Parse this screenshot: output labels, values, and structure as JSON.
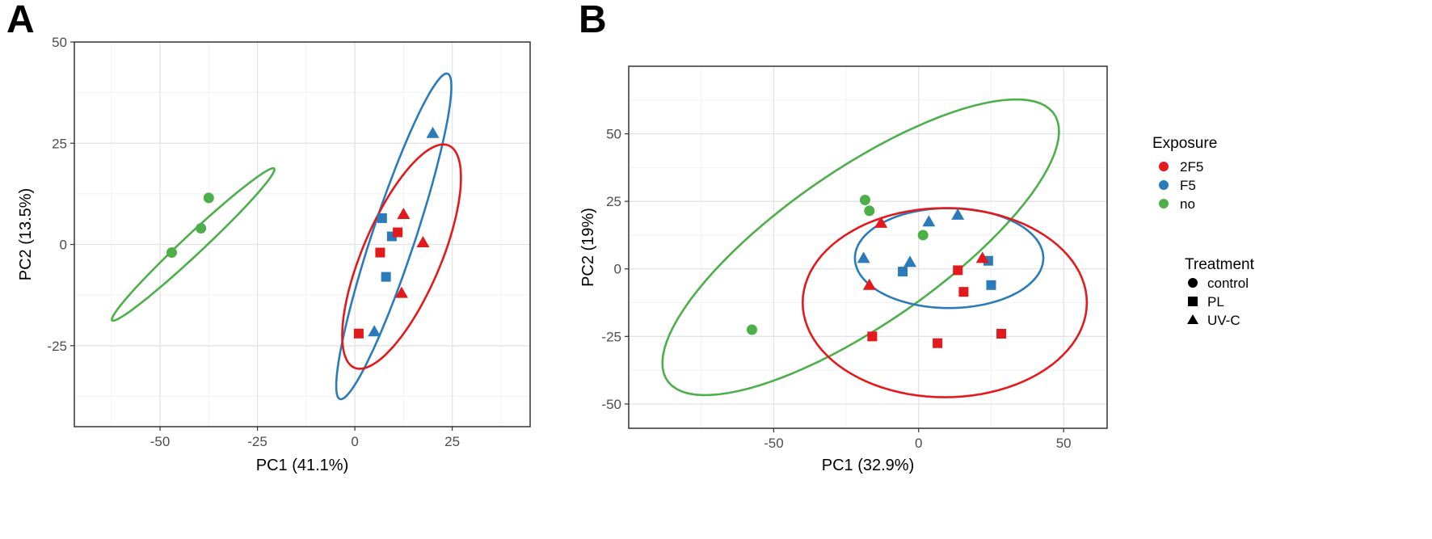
{
  "chart_data": [
    {
      "panel": "A",
      "type": "scatter",
      "xlabel": "PC1 (41.1%)",
      "ylabel": "PC2 (13.5%)",
      "xlim": [
        -72,
        45
      ],
      "ylim": [
        -45,
        50
      ],
      "xticks": [
        -50,
        -25,
        0,
        25
      ],
      "xtick_labels": [
        "-50",
        "-25",
        "0",
        "25"
      ],
      "yticks": [
        50,
        25,
        0,
        -25
      ],
      "ytick_labels": [
        "50",
        "25",
        "0",
        "-25"
      ],
      "grid": true,
      "points": [
        {
          "x": -47,
          "y": -2,
          "exposure": "no",
          "treatment": "control"
        },
        {
          "x": -39.5,
          "y": 4,
          "exposure": "no",
          "treatment": "control"
        },
        {
          "x": -37.5,
          "y": 11.5,
          "exposure": "no",
          "treatment": "control"
        },
        {
          "x": 7,
          "y": 6.5,
          "exposure": "F5",
          "treatment": "PL"
        },
        {
          "x": 9.5,
          "y": 2,
          "exposure": "F5",
          "treatment": "PL"
        },
        {
          "x": 8,
          "y": -8,
          "exposure": "F5",
          "treatment": "PL"
        },
        {
          "x": 20,
          "y": 27.5,
          "exposure": "F5",
          "treatment": "UV-C"
        },
        {
          "x": 5,
          "y": -21.5,
          "exposure": "F5",
          "treatment": "UV-C"
        },
        {
          "x": 11,
          "y": 3,
          "exposure": "2F5",
          "treatment": "PL"
        },
        {
          "x": 6.5,
          "y": -2,
          "exposure": "2F5",
          "treatment": "PL"
        },
        {
          "x": 1,
          "y": -22,
          "exposure": "2F5",
          "treatment": "PL"
        },
        {
          "x": 12.5,
          "y": 7.5,
          "exposure": "2F5",
          "treatment": "UV-C"
        },
        {
          "x": 17.5,
          "y": 0.5,
          "exposure": "2F5",
          "treatment": "UV-C"
        },
        {
          "x": 12,
          "y": -12,
          "exposure": "2F5",
          "treatment": "UV-C"
        }
      ],
      "ellipses": [
        {
          "exposure": "no",
          "cx": -41.5,
          "cy": 0,
          "rx": 28,
          "ry": 2.5,
          "angle_deg": 42
        },
        {
          "exposure": "F5",
          "cx": 10,
          "cy": 2,
          "rx": 42.5,
          "ry": 5.5,
          "angle_deg": 71
        },
        {
          "exposure": "2F5",
          "cx": 12,
          "cy": -3,
          "rx": 30,
          "ry": 10,
          "angle_deg": 66
        }
      ]
    },
    {
      "panel": "B",
      "type": "scatter",
      "xlabel": "PC1 (32.9%)",
      "ylabel": "PC2 (19%)",
      "xlim": [
        -100,
        65
      ],
      "ylim": [
        -59,
        75
      ],
      "xticks": [
        -50,
        0,
        50
      ],
      "xtick_labels": [
        "-50",
        "0",
        "50"
      ],
      "yticks": [
        50,
        25,
        0,
        -25,
        -50
      ],
      "ytick_labels": [
        "50",
        "25",
        "0",
        "-25",
        "-50"
      ],
      "grid": true,
      "points": [
        {
          "x": -18.5,
          "y": 25.5,
          "exposure": "no",
          "treatment": "control"
        },
        {
          "x": -17,
          "y": 21.5,
          "exposure": "no",
          "treatment": "control"
        },
        {
          "x": 1.5,
          "y": 12.5,
          "exposure": "no",
          "treatment": "control"
        },
        {
          "x": -57.5,
          "y": -22.5,
          "exposure": "no",
          "treatment": "control"
        },
        {
          "x": -5.5,
          "y": -1,
          "exposure": "F5",
          "treatment": "PL"
        },
        {
          "x": 24,
          "y": 3,
          "exposure": "F5",
          "treatment": "PL"
        },
        {
          "x": 25,
          "y": -6,
          "exposure": "F5",
          "treatment": "PL"
        },
        {
          "x": 3.5,
          "y": 17.5,
          "exposure": "F5",
          "treatment": "UV-C"
        },
        {
          "x": 13.5,
          "y": 20,
          "exposure": "F5",
          "treatment": "UV-C"
        },
        {
          "x": -19,
          "y": 4,
          "exposure": "F5",
          "treatment": "UV-C"
        },
        {
          "x": -3,
          "y": 2.5,
          "exposure": "F5",
          "treatment": "UV-C"
        },
        {
          "x": 13.5,
          "y": -0.5,
          "exposure": "2F5",
          "treatment": "PL"
        },
        {
          "x": 15.5,
          "y": -8.5,
          "exposure": "2F5",
          "treatment": "PL"
        },
        {
          "x": -16,
          "y": -25,
          "exposure": "2F5",
          "treatment": "PL"
        },
        {
          "x": 6.5,
          "y": -27.5,
          "exposure": "2F5",
          "treatment": "PL"
        },
        {
          "x": 28.5,
          "y": -24,
          "exposure": "2F5",
          "treatment": "PL"
        },
        {
          "x": -13,
          "y": 17,
          "exposure": "2F5",
          "treatment": "UV-C"
        },
        {
          "x": -17,
          "y": -6,
          "exposure": "2F5",
          "treatment": "UV-C"
        },
        {
          "x": 22,
          "y": 4,
          "exposure": "2F5",
          "treatment": "UV-C"
        }
      ],
      "ellipses": [
        {
          "exposure": "no",
          "cx": -20,
          "cy": 8,
          "rx": 83,
          "ry": 28,
          "angle_deg": 37
        },
        {
          "exposure": "F5",
          "cx": 10.5,
          "cy": 4,
          "rx": 32.5,
          "ry": 18.5,
          "angle_deg": 0
        },
        {
          "exposure": "2F5",
          "cx": 9,
          "cy": -12.5,
          "rx": 49,
          "ry": 35,
          "angle_deg": 0
        }
      ]
    }
  ],
  "legend": {
    "exposure_title": "Exposure",
    "exposure_items": [
      {
        "label": "2F5",
        "color": "#e31a1c"
      },
      {
        "label": "F5",
        "color": "#2b7bba"
      },
      {
        "label": "no",
        "color": "#4daf4a"
      }
    ],
    "treatment_title": "Treatment",
    "treatment_items": [
      {
        "label": "control",
        "shape": "circle"
      },
      {
        "label": "PL",
        "shape": "square"
      },
      {
        "label": "UV-C",
        "shape": "triangle"
      }
    ]
  },
  "colors": {
    "2F5": "#e31a1c",
    "F5": "#2b7bba",
    "no": "#4daf4a"
  }
}
